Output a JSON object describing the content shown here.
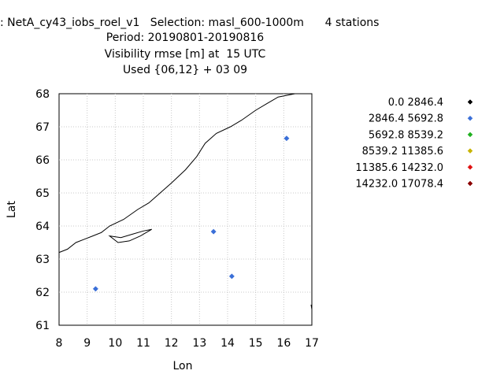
{
  "title": {
    "line1": ": NetA_cy43_iobs_roel_v1   Selection: masl_600-1000m      4 stations",
    "line2": "Period: 20190801-20190816",
    "line3": "Visibility rmse [m] at  15 UTC",
    "line4": "Used {06,12} + 03 09"
  },
  "chart_data": {
    "type": "scatter",
    "xlabel": "Lon",
    "ylabel": "Lat",
    "xlim": [
      8,
      17
    ],
    "ylim": [
      61,
      68
    ],
    "xticks": [
      8,
      9,
      10,
      11,
      12,
      13,
      14,
      15,
      16,
      17
    ],
    "yticks": [
      61,
      62,
      63,
      64,
      65,
      66,
      67,
      68
    ],
    "grid": true,
    "legend_position": "right",
    "legend": [
      {
        "label": "0.0 2846.4",
        "color": "#000000"
      },
      {
        "label": "2846.4 5692.8",
        "color": "#3a6fd8"
      },
      {
        "label": "5692.8 8539.2",
        "color": "#1fb01f"
      },
      {
        "label": "8539.2 11385.6",
        "color": "#c8b400"
      },
      {
        "label": "11385.6 14232.0",
        "color": "#e01010"
      },
      {
        "label": "14232.0 17078.4",
        "color": "#8b0000"
      }
    ],
    "points": [
      {
        "lon": 16.1,
        "lat": 66.65,
        "class": 1
      },
      {
        "lon": 13.5,
        "lat": 63.83,
        "class": 1
      },
      {
        "lon": 14.15,
        "lat": 62.48,
        "class": 1
      },
      {
        "lon": 9.3,
        "lat": 62.1,
        "class": 1
      }
    ],
    "coastline": [
      [
        8.0,
        63.2
      ],
      [
        8.3,
        63.3
      ],
      [
        8.6,
        63.5
      ],
      [
        8.9,
        63.6
      ],
      [
        9.2,
        63.7
      ],
      [
        9.5,
        63.8
      ],
      [
        9.8,
        64.0
      ],
      [
        10.3,
        64.2
      ],
      [
        10.8,
        64.5
      ],
      [
        11.2,
        64.7
      ],
      [
        11.6,
        65.0
      ],
      [
        12.0,
        65.3
      ],
      [
        12.5,
        65.7
      ],
      [
        12.9,
        66.1
      ],
      [
        13.2,
        66.5
      ],
      [
        13.6,
        66.8
      ],
      [
        14.1,
        67.0
      ],
      [
        14.5,
        67.2
      ],
      [
        15.0,
        67.5
      ],
      [
        15.4,
        67.7
      ],
      [
        15.8,
        67.9
      ],
      [
        16.4,
        68.0
      ]
    ],
    "fjord": [
      [
        9.8,
        63.7
      ],
      [
        10.2,
        63.65
      ],
      [
        10.6,
        63.75
      ],
      [
        11.0,
        63.85
      ],
      [
        11.3,
        63.9
      ],
      [
        10.9,
        63.7
      ],
      [
        10.5,
        63.55
      ],
      [
        10.1,
        63.5
      ]
    ],
    "edge_mark": {
      "lon": 17.0,
      "lat": 61.55
    }
  }
}
